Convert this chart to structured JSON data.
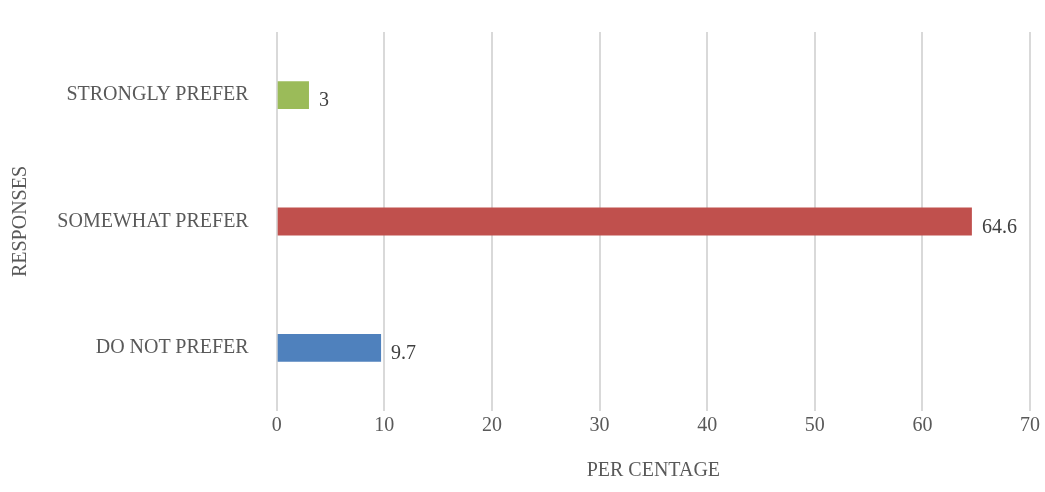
{
  "chart_data": {
    "type": "bar",
    "orientation": "horizontal",
    "categories": [
      "STRONGLY PREFER",
      "SOMEWHAT PREFER",
      "DO NOT PREFER"
    ],
    "values": [
      3,
      64.6,
      9.7
    ],
    "colors": [
      "#9bbb59",
      "#c0504d",
      "#4f81bd"
    ],
    "xlim": [
      0,
      70
    ],
    "xticks": [
      0,
      10,
      20,
      30,
      40,
      50,
      60,
      70
    ],
    "xlabel": "PER CENTAGE",
    "ylabel": "RESPONSES",
    "grid": "x",
    "data_labels": true,
    "legend": false
  }
}
